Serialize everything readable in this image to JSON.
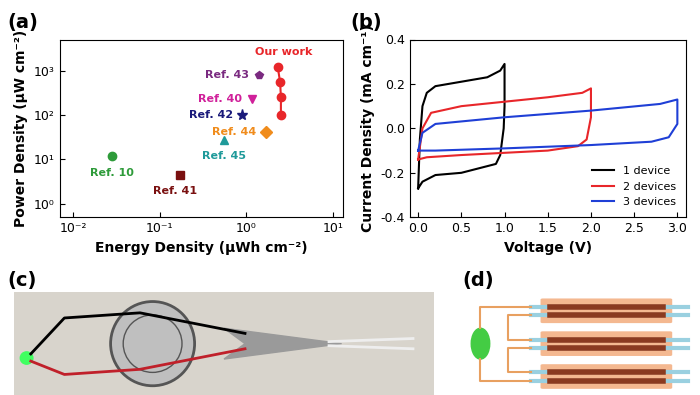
{
  "chart_data": [
    {
      "type": "scatter",
      "title": "(a)",
      "x_label": "Energy Density (μWh cm⁻²)",
      "y_label": "Power Density (μW cm⁻²)",
      "log": true,
      "grid": false,
      "xlim": [
        0.007,
        13
      ],
      "ylim": [
        0.5,
        5000
      ],
      "xticks": [
        {
          "value": 0.01,
          "label": "10⁻²"
        },
        {
          "value": 0.1,
          "label": "10⁻¹"
        },
        {
          "value": 1,
          "label": "10⁰"
        },
        {
          "value": 10,
          "label": "10¹"
        }
      ],
      "yticks": [
        {
          "value": 1,
          "label": "10⁰"
        },
        {
          "value": 10,
          "label": "10¹"
        },
        {
          "value": 100,
          "label": "10²"
        },
        {
          "value": 1000,
          "label": "10³"
        }
      ],
      "series": [
        {
          "name": "Ref. 10",
          "color": "#2e9b3a",
          "marker": "circle",
          "line_style": "none",
          "x": [
            0.028
          ],
          "values": [
            12
          ]
        },
        {
          "name": "Ref. 41",
          "color": "#7a1010",
          "marker": "square",
          "line_style": "none",
          "x": [
            0.17
          ],
          "values": [
            4.5
          ]
        },
        {
          "name": "Ref. 45",
          "color": "#1f9a9a",
          "marker": "triangle",
          "line_style": "none",
          "x": [
            0.55
          ],
          "values": [
            28
          ]
        },
        {
          "name": "Ref. 42",
          "color": "#1a1a7a",
          "marker": "star",
          "line_style": "none",
          "x": [
            0.9
          ],
          "values": [
            100
          ]
        },
        {
          "name": "Ref. 40",
          "color": "#d0209a",
          "marker": "triangle_down",
          "line_style": "none",
          "x": [
            1.15
          ],
          "values": [
            230
          ]
        },
        {
          "name": "Ref. 43",
          "color": "#7a2a80",
          "marker": "pentagon",
          "line_style": "none",
          "x": [
            1.4
          ],
          "values": [
            800
          ]
        },
        {
          "name": "Ref. 44",
          "color": "#f08c1c",
          "marker": "diamond",
          "line_style": "none",
          "x": [
            1.7
          ],
          "values": [
            41
          ]
        },
        {
          "name": "Our work",
          "color": "#e8262a",
          "marker": "circle",
          "line_style": "solid",
          "x": [
            2.3,
            2.45,
            2.5,
            2.5
          ],
          "values": [
            1200,
            540,
            250,
            100
          ]
        }
      ]
    },
    {
      "type": "line",
      "title": "(b)",
      "x_label": "Voltage (V)",
      "y_label": "Current Density (mA cm⁻¹)",
      "grid": false,
      "legend": "lower right",
      "xlim": [
        -0.1,
        3.1
      ],
      "ylim": [
        -0.4,
        0.4
      ],
      "xticks": [
        0.0,
        0.5,
        1.0,
        1.5,
        2.0,
        2.5,
        3.0
      ],
      "yticks": [
        -0.4,
        -0.2,
        0.0,
        0.2,
        0.4
      ],
      "series": [
        {
          "name": "1 device",
          "color": "#000000",
          "x": [
            0.0,
            0.02,
            0.05,
            0.1,
            0.2,
            0.5,
            0.8,
            0.95,
            1.0,
            1.0,
            0.99,
            0.95,
            0.9,
            0.5,
            0.2,
            0.05,
            0.0
          ],
          "values": [
            -0.27,
            -0.05,
            0.1,
            0.16,
            0.19,
            0.21,
            0.23,
            0.26,
            0.29,
            0.1,
            0.0,
            -0.12,
            -0.16,
            -0.2,
            -0.21,
            -0.24,
            -0.27
          ]
        },
        {
          "name": "2 devices",
          "color": "#e8262a",
          "x": [
            0.0,
            0.05,
            0.15,
            0.5,
            1.0,
            1.5,
            1.9,
            2.0,
            2.0,
            1.95,
            1.85,
            1.5,
            1.0,
            0.5,
            0.1,
            0.0
          ],
          "values": [
            -0.14,
            0.0,
            0.07,
            0.1,
            0.12,
            0.14,
            0.16,
            0.18,
            0.05,
            -0.05,
            -0.08,
            -0.1,
            -0.11,
            -0.12,
            -0.13,
            -0.14
          ]
        },
        {
          "name": "3 devices",
          "color": "#1f3fd6",
          "x": [
            0.0,
            0.05,
            0.2,
            1.0,
            2.0,
            2.8,
            3.0,
            3.0,
            2.9,
            2.7,
            2.0,
            1.0,
            0.2,
            0.0
          ],
          "values": [
            -0.1,
            -0.02,
            0.02,
            0.05,
            0.08,
            0.11,
            0.13,
            0.02,
            -0.04,
            -0.06,
            -0.075,
            -0.09,
            -0.1,
            -0.1
          ]
        }
      ]
    }
  ],
  "photo": {
    "label": "(c)"
  },
  "diagram": {
    "label": "(d)"
  }
}
